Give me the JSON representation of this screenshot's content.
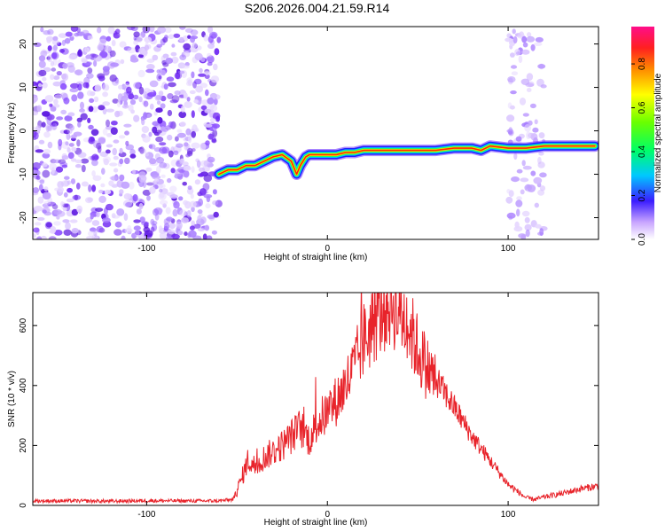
{
  "title": "S206.2026.004.21.59.R14",
  "colors": {
    "line": "#e8232a",
    "noise": "#8a2be2",
    "background": "#ffffff",
    "axis": "#000000"
  },
  "chart_data": [
    {
      "type": "heatmap",
      "xlabel": "Height of straight line (km)",
      "ylabel": "Frequency (Hz)",
      "xlim": [
        -163,
        150
      ],
      "ylim": [
        -25,
        24
      ],
      "xticks": [
        -100,
        0,
        100
      ],
      "xtick_labels": [
        "-100",
        "0",
        "100"
      ],
      "yticks": [
        -20,
        -10,
        0,
        10,
        20
      ],
      "ytick_labels": [
        "-20",
        "-10",
        "0",
        "10",
        "20"
      ],
      "colorbar": {
        "label": "Normalized spectral amplitude",
        "range": [
          0,
          0.97
        ],
        "ticks": [
          0.0,
          0.2,
          0.4,
          0.6,
          0.8
        ],
        "tick_labels": [
          "0.0",
          "0.2",
          "0.4",
          "0.6",
          "0.8"
        ]
      },
      "ridge": {
        "x": [
          -60,
          -55,
          -50,
          -45,
          -40,
          -35,
          -30,
          -25,
          -20,
          -17,
          -15,
          -12,
          -10,
          -5,
          0,
          5,
          10,
          15,
          20,
          30,
          40,
          50,
          60,
          70,
          80,
          85,
          90,
          100,
          110,
          120,
          130,
          140,
          148
        ],
        "y": [
          -10,
          -9,
          -9,
          -8,
          -8,
          -7,
          -6,
          -5.5,
          -7,
          -10,
          -8,
          -6,
          -5.5,
          -5.5,
          -5.5,
          -5.5,
          -5,
          -5,
          -4.5,
          -4.5,
          -4.5,
          -4.5,
          -4.5,
          -4,
          -4,
          -4.5,
          -3.5,
          -4,
          -4,
          -3.5,
          -3.5,
          -3.5,
          -3.5
        ]
      },
      "noise_regions": [
        {
          "x_range": [
            -163,
            -60
          ],
          "y_range": [
            -25,
            24
          ]
        },
        {
          "x_range": [
            100,
            120
          ],
          "y_range": [
            -25,
            24
          ]
        }
      ]
    },
    {
      "type": "line",
      "xlabel": "Height of straight line (km)",
      "ylabel": "SNR (10 * v/v)",
      "xlim": [
        -163,
        150
      ],
      "ylim": [
        0,
        710
      ],
      "xticks": [
        -100,
        0,
        100
      ],
      "xtick_labels": [
        "-100",
        "0",
        "100"
      ],
      "yticks": [
        0,
        200,
        400,
        600
      ],
      "ytick_labels": [
        "0",
        "200",
        "400",
        "600"
      ],
      "series": [
        {
          "name": "SNR",
          "x": [
            -163,
            -140,
            -120,
            -100,
            -80,
            -60,
            -52,
            -48,
            -44,
            -40,
            -35,
            -30,
            -25,
            -20,
            -15,
            -10,
            -5,
            0,
            5,
            10,
            15,
            20,
            25,
            30,
            35,
            40,
            45,
            50,
            55,
            60,
            70,
            80,
            90,
            100,
            110,
            115,
            120,
            130,
            140,
            150
          ],
          "y": [
            15,
            15,
            14,
            16,
            15,
            15,
            20,
            80,
            150,
            130,
            160,
            180,
            200,
            230,
            260,
            220,
            280,
            310,
            350,
            400,
            460,
            550,
            600,
            650,
            680,
            650,
            600,
            520,
            460,
            420,
            330,
            230,
            150,
            70,
            25,
            20,
            28,
            40,
            55,
            65
          ]
        }
      ]
    }
  ]
}
